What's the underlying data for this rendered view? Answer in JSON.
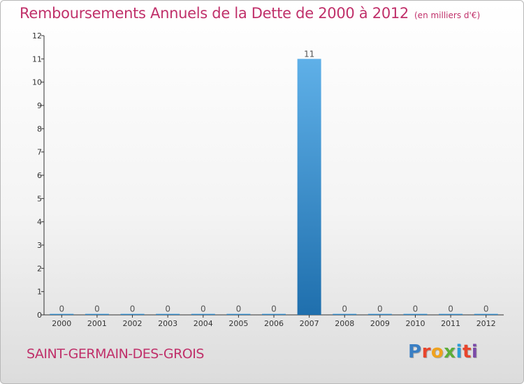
{
  "title": "Remboursements Annuels de la Dette de 2000 à 2012",
  "unit_note": "(en milliers d'€)",
  "commune": "SAINT-GERMAIN-DES-GROIS",
  "logo": {
    "text": "Proxiti",
    "letters": [
      "P",
      "r",
      "o",
      "x",
      "i",
      "t",
      "i"
    ],
    "colors": [
      "#3a7fc4",
      "#e8452c",
      "#f0a21e",
      "#5cae3a",
      "#2a9dd8",
      "#e8452c",
      "#7a4aa8"
    ]
  },
  "colors": {
    "title": "#c0306a",
    "bar_top": "#5fb0e8",
    "bar_bottom": "#1f6fad",
    "axis": "#333333"
  },
  "chart_data": {
    "type": "bar",
    "title": "Remboursements Annuels de la Dette de 2000 à 2012",
    "xlabel": "",
    "ylabel": "",
    "categories": [
      "2000",
      "2001",
      "2002",
      "2003",
      "2004",
      "2005",
      "2006",
      "2007",
      "2008",
      "2009",
      "2010",
      "2011",
      "2012"
    ],
    "values": [
      0,
      0,
      0,
      0,
      0,
      0,
      0,
      11,
      0,
      0,
      0,
      0,
      0
    ],
    "value_labels": [
      "0",
      "0",
      "0",
      "0",
      "0",
      "0",
      "0",
      "11",
      "0",
      "0",
      "0",
      "0",
      "0"
    ],
    "ylim": [
      0,
      12
    ],
    "yticks": [
      "0",
      "1",
      "2",
      "3",
      "4",
      "5",
      "6",
      "7",
      "8",
      "9",
      "10",
      "11",
      "12"
    ],
    "grid": false,
    "legend": "none"
  }
}
